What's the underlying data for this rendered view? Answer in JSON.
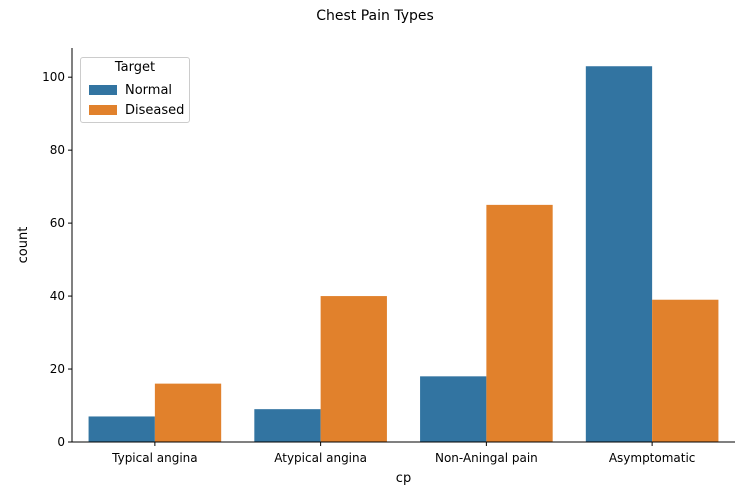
{
  "chart_data": {
    "type": "bar",
    "title": "Chest Pain Types",
    "xlabel": "cp",
    "ylabel": "count",
    "categories": [
      "Typical angina",
      "Atypical angina",
      "Non-Aningal pain",
      "Asymptomatic"
    ],
    "series": [
      {
        "name": "Normal",
        "values": [
          7,
          9,
          18,
          103
        ],
        "color": "#3274a1"
      },
      {
        "name": "Diseased",
        "values": [
          16,
          40,
          65,
          39
        ],
        "color": "#e1812c"
      }
    ],
    "ylim": [
      0,
      108
    ],
    "yticks": [
      0,
      20,
      40,
      60,
      80,
      100
    ],
    "legend": {
      "title": "Target",
      "position": "top-left"
    },
    "grid": false
  }
}
